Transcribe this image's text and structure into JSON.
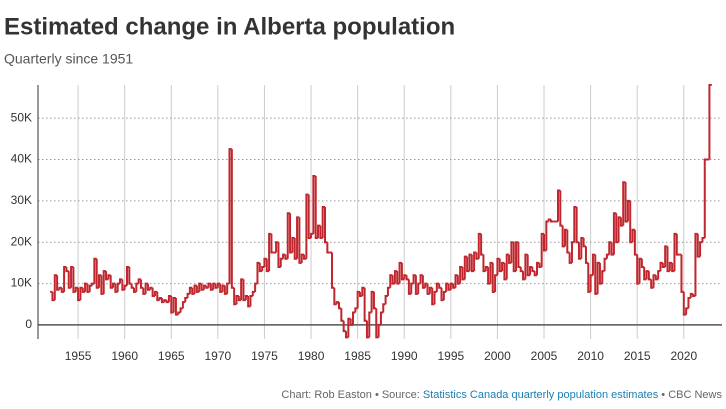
{
  "chart_data": {
    "type": "step",
    "title": "Estimated change in Alberta population",
    "subtitle": "Quarterly since 1951",
    "credit": "Chart: Rob Easton • Source:",
    "source_link": "Statistics Canada quarterly population estimates",
    "publisher": "• CBC News",
    "color": "#c0262d",
    "grid": true,
    "xlim": [
      1950.7,
      2024.1
    ],
    "ylim": [
      -3400,
      58000
    ],
    "xticks": [
      1955,
      1960,
      1965,
      1970,
      1975,
      1980,
      1985,
      1990,
      1995,
      2000,
      2005,
      2010,
      2015,
      2020
    ],
    "yticks": [
      0,
      {
        "value": 10000,
        "label": "10K"
      },
      {
        "value": 20000,
        "label": "20K"
      },
      {
        "value": 30000,
        "label": "30K"
      },
      {
        "value": 40000,
        "label": "40K"
      },
      {
        "value": 50000,
        "label": "50K"
      }
    ],
    "x": [
      1952,
      1952.25,
      1952.5,
      1952.75,
      1953,
      1953.25,
      1953.5,
      1953.75,
      1954,
      1954.25,
      1954.5,
      1954.75,
      1955,
      1955.25,
      1955.5,
      1955.75,
      1956,
      1956.25,
      1956.5,
      1956.75,
      1957,
      1957.25,
      1957.5,
      1957.75,
      1958,
      1958.25,
      1958.5,
      1958.75,
      1959,
      1959.25,
      1959.5,
      1959.75,
      1960,
      1960.25,
      1960.5,
      1960.75,
      1961,
      1961.25,
      1961.5,
      1961.75,
      1962,
      1962.25,
      1962.5,
      1962.75,
      1963,
      1963.25,
      1963.5,
      1963.75,
      1964,
      1964.25,
      1964.5,
      1964.75,
      1965,
      1965.25,
      1965.5,
      1965.75,
      1966,
      1966.25,
      1966.5,
      1966.75,
      1967,
      1967.25,
      1967.5,
      1967.75,
      1968,
      1968.25,
      1968.5,
      1968.75,
      1969,
      1969.25,
      1969.5,
      1969.75,
      1970,
      1970.25,
      1970.5,
      1970.75,
      1971,
      1971.25,
      1971.5,
      1971.75,
      1972,
      1972.25,
      1972.5,
      1972.75,
      1973,
      1973.25,
      1973.5,
      1973.75,
      1974,
      1974.25,
      1974.5,
      1974.75,
      1975,
      1975.25,
      1975.5,
      1975.75,
      1976,
      1976.25,
      1976.5,
      1976.75,
      1977,
      1977.25,
      1977.5,
      1977.75,
      1978,
      1978.25,
      1978.5,
      1978.75,
      1979,
      1979.25,
      1979.5,
      1979.75,
      1980,
      1980.25,
      1980.5,
      1980.75,
      1981,
      1981.25,
      1981.5,
      1981.75,
      1982,
      1982.25,
      1982.5,
      1982.75,
      1983,
      1983.25,
      1983.5,
      1983.75,
      1984,
      1984.25,
      1984.5,
      1984.75,
      1985,
      1985.25,
      1985.5,
      1985.75,
      1986,
      1986.25,
      1986.5,
      1986.75,
      1987,
      1987.25,
      1987.5,
      1987.75,
      1988,
      1988.25,
      1988.5,
      1988.75,
      1989,
      1989.25,
      1989.5,
      1989.75,
      1990,
      1990.25,
      1990.5,
      1990.75,
      1991,
      1991.25,
      1991.5,
      1991.75,
      1992,
      1992.25,
      1992.5,
      1992.75,
      1993,
      1993.25,
      1993.5,
      1993.75,
      1994,
      1994.25,
      1994.5,
      1994.75,
      1995,
      1995.25,
      1995.5,
      1995.75,
      1996,
      1996.25,
      1996.5,
      1996.75,
      1997,
      1997.25,
      1997.5,
      1997.75,
      1998,
      1998.25,
      1998.5,
      1998.75,
      1999,
      1999.25,
      1999.5,
      1999.75,
      2000,
      2000.25,
      2000.5,
      2000.75,
      2001,
      2001.25,
      2001.5,
      2001.75,
      2002,
      2002.25,
      2002.5,
      2002.75,
      2003,
      2003.25,
      2003.5,
      2003.75,
      2004,
      2004.25,
      2004.5,
      2004.75,
      2005,
      2005.25,
      2005.5,
      2005.75,
      2006,
      2006.25,
      2006.5,
      2006.75,
      2007,
      2007.25,
      2007.5,
      2007.75,
      2008,
      2008.25,
      2008.5,
      2008.75,
      2009,
      2009.25,
      2009.5,
      2009.75,
      2010,
      2010.25,
      2010.5,
      2010.75,
      2011,
      2011.25,
      2011.5,
      2011.75,
      2012,
      2012.25,
      2012.5,
      2012.75,
      2013,
      2013.25,
      2013.5,
      2013.75,
      2014,
      2014.25,
      2014.5,
      2014.75,
      2015,
      2015.25,
      2015.5,
      2015.75,
      2016,
      2016.25,
      2016.5,
      2016.75,
      2017,
      2017.25,
      2017.5,
      2017.75,
      2018,
      2018.25,
      2018.5,
      2018.75,
      2019,
      2019.25,
      2019.5,
      2019.75,
      2020,
      2020.25,
      2020.5,
      2020.75,
      2021,
      2021.25,
      2021.5,
      2021.75,
      2022,
      2022.25,
      2022.5,
      2022.75
    ],
    "values": [
      8000,
      6000,
      12000,
      8500,
      9000,
      8000,
      14000,
      13000,
      9000,
      14000,
      8000,
      9000,
      6000,
      9000,
      8000,
      10000,
      8000,
      9500,
      10000,
      16000,
      9000,
      12000,
      7500,
      13000,
      11000,
      12000,
      9000,
      10000,
      8000,
      10000,
      11000,
      8500,
      9500,
      14000,
      10000,
      9000,
      8000,
      10000,
      11000,
      9000,
      7500,
      10000,
      8500,
      9000,
      7000,
      8000,
      6000,
      6500,
      5500,
      6000,
      5500,
      7000,
      3000,
      6500,
      2500,
      3000,
      4000,
      5500,
      6500,
      7500,
      9000,
      7500,
      9500,
      8000,
      10000,
      8500,
      9500,
      9000,
      10000,
      8500,
      10000,
      9000,
      10000,
      8000,
      9500,
      7500,
      10000,
      42500,
      9000,
      5000,
      7000,
      6000,
      11000,
      6000,
      7000,
      4500,
      7000,
      8000,
      10000,
      15000,
      13000,
      14000,
      16000,
      13000,
      22000,
      17500,
      17500,
      20000,
      14000,
      16000,
      17000,
      16000,
      27000,
      17500,
      21000,
      16000,
      26000,
      15000,
      17000,
      16000,
      31500,
      21000,
      22000,
      36000,
      21000,
      24000,
      21000,
      28500,
      20000,
      17500,
      17500,
      9000,
      5000,
      5500,
      4000,
      1000,
      -1500,
      -3000,
      1500,
      0,
      3000,
      4000,
      8000,
      7000,
      9000,
      1000,
      -3000,
      3000,
      8000,
      4000,
      -3000,
      0,
      3000,
      5000,
      7000,
      9000,
      12000,
      10000,
      13000,
      10000,
      15000,
      11000,
      12000,
      11000,
      7500,
      10000,
      12000,
      7500,
      10000,
      12000,
      9000,
      10000,
      7500,
      9000,
      5000,
      8000,
      10000,
      9000,
      6000,
      8000,
      10000,
      8500,
      10000,
      9000,
      12000,
      10000,
      14000,
      11000,
      16500,
      13000,
      17000,
      13000,
      17500,
      16000,
      22000,
      17000,
      13000,
      14000,
      10000,
      15000,
      8000,
      12000,
      16000,
      13000,
      15000,
      11000,
      17000,
      15000,
      20000,
      13000,
      20000,
      14000,
      13000,
      11000,
      17000,
      12000,
      14000,
      13000,
      12000,
      15000,
      14000,
      22000,
      18000,
      25000,
      25500,
      25000,
      25000,
      25000,
      32500,
      24000,
      19000,
      23000,
      17500,
      15000,
      20000,
      28500,
      20000,
      16000,
      21000,
      19000,
      15000,
      8000,
      12000,
      17000,
      7500,
      15000,
      10000,
      13000,
      16000,
      17000,
      20000,
      17000,
      27000,
      20000,
      26000,
      24000,
      34500,
      25000,
      30000,
      20000,
      23000,
      17000,
      10000,
      16000,
      14000,
      11000,
      13000,
      11000,
      9000,
      12000,
      11000,
      13000,
      15000,
      14000,
      19000,
      13000,
      15000,
      13000,
      22000,
      17000,
      17000,
      8000,
      2500,
      4000,
      6500,
      7500,
      7000,
      22000,
      16500,
      20000,
      21000,
      40000,
      40000,
      58000
    ]
  }
}
